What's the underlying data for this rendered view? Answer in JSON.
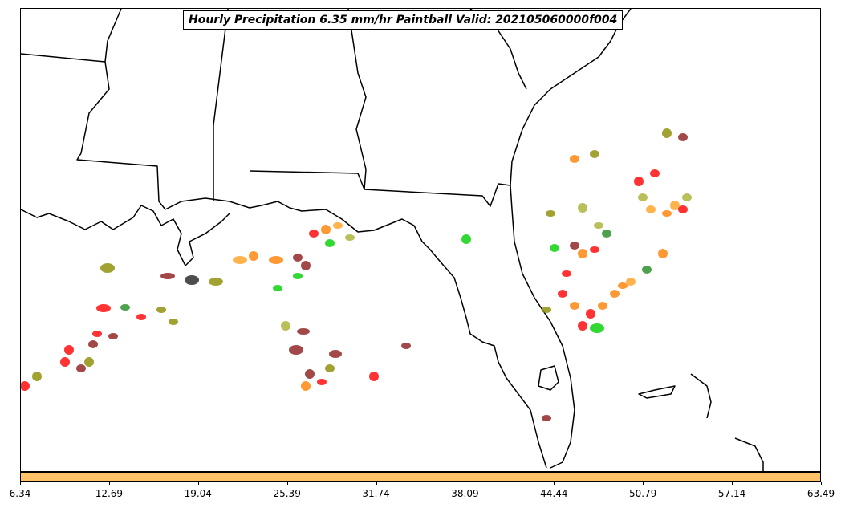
{
  "title": "Hourly Precipitation 6.35 mm/hr Paintball Valid: 202105060000f004",
  "colorbar": {
    "color": "#ffc266",
    "ticks": [
      "6.34",
      "12.69",
      "19.04",
      "25.39",
      "31.74",
      "38.09",
      "44.44",
      "50.79",
      "57.14",
      "63.49"
    ]
  },
  "palette": {
    "red": "#ff0000",
    "dark_red": "#8b1a1a",
    "orange": "#ff7f00",
    "light_orange": "#ffa020",
    "green": "#00d000",
    "dark_green": "#228b22",
    "olive": "#8b8b00",
    "yellow_green": "#a8b030",
    "black": "#202020"
  }
}
